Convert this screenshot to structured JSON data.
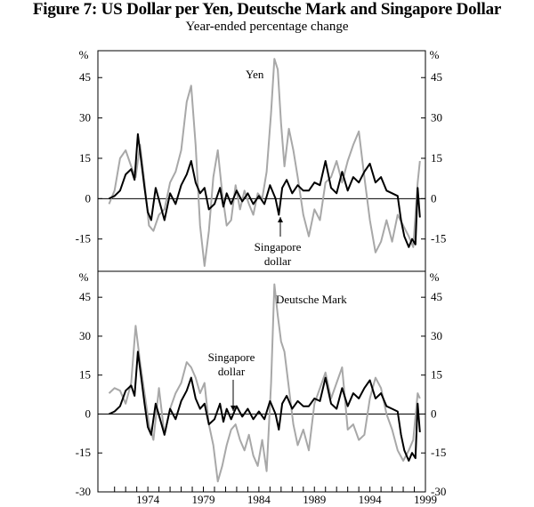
{
  "title": "Figure 7: US Dollar per Yen, Deutsche Mark and Singapore Dollar",
  "subtitle": "Year-ended percentage change",
  "colors": {
    "singapore": "#000000",
    "comparison": "#a8a8a8"
  },
  "chart_data": [
    {
      "type": "line",
      "panel": "top",
      "ylabel": "%",
      "ylim": [
        -27,
        55
      ],
      "yticks": [
        -15,
        0,
        15,
        30,
        45
      ],
      "ytick_labels": [
        "-15",
        "0",
        "15",
        "30",
        "45"
      ],
      "xlim": [
        1970.0,
        1999.5
      ],
      "grid": false,
      "annotations": [
        {
          "text": "Yen",
          "series": "Yen"
        },
        {
          "text": "Singapore",
          "series": "Singapore dollar"
        },
        {
          "text": "dollar",
          "series": "Singapore dollar"
        }
      ],
      "series": [
        {
          "name": "Singapore dollar",
          "x": [
            1971.0,
            1971.5,
            1972.0,
            1972.5,
            1973.0,
            1973.3,
            1973.6,
            1973.9,
            1974.2,
            1974.5,
            1974.8,
            1975.2,
            1975.6,
            1976.0,
            1976.5,
            1977.0,
            1977.5,
            1978.0,
            1978.4,
            1978.8,
            1979.2,
            1979.6,
            1980.0,
            1980.5,
            1981.0,
            1981.3,
            1981.6,
            1982.0,
            1982.5,
            1983.0,
            1983.5,
            1984.0,
            1984.5,
            1985.0,
            1985.5,
            1986.0,
            1986.3,
            1986.6,
            1987.0,
            1987.5,
            1988.0,
            1988.5,
            1989.0,
            1989.5,
            1990.0,
            1990.5,
            1991.0,
            1991.5,
            1992.0,
            1992.5,
            1993.0,
            1993.5,
            1994.0,
            1994.5,
            1995.0,
            1995.5,
            1996.0,
            1996.5,
            1997.0,
            1997.3,
            1997.6,
            1998.0,
            1998.3,
            1998.6,
            1998.8,
            1999.0
          ],
          "y": [
            0,
            1,
            3,
            9,
            11,
            7,
            24,
            14,
            4,
            -5,
            -8,
            4,
            -2,
            -8,
            2,
            -2,
            5,
            9,
            14,
            6,
            2,
            4,
            -4,
            -2,
            4,
            -3,
            2,
            -2,
            3,
            -1,
            2,
            -2,
            1,
            -2,
            5,
            0,
            -6,
            4,
            7,
            2,
            5,
            3,
            3,
            6,
            5,
            14,
            4,
            2,
            10,
            3,
            8,
            6,
            10,
            13,
            6,
            8,
            3,
            2,
            1,
            -8,
            -14,
            -18,
            -15,
            -17,
            4,
            -7
          ]
        },
        {
          "name": "Yen",
          "x": [
            1971.0,
            1971.5,
            1972.0,
            1972.5,
            1973.0,
            1973.4,
            1973.8,
            1974.2,
            1974.6,
            1975.0,
            1975.5,
            1976.0,
            1976.5,
            1977.0,
            1977.5,
            1978.0,
            1978.4,
            1978.8,
            1979.2,
            1979.6,
            1980.0,
            1980.4,
            1980.8,
            1981.2,
            1981.6,
            1982.0,
            1982.4,
            1982.8,
            1983.2,
            1983.6,
            1984.0,
            1984.4,
            1984.8,
            1985.2,
            1985.6,
            1985.9,
            1986.2,
            1986.5,
            1986.8,
            1987.2,
            1987.6,
            1988.0,
            1988.5,
            1989.0,
            1989.5,
            1990.0,
            1990.5,
            1991.0,
            1991.5,
            1992.0,
            1992.5,
            1993.0,
            1993.5,
            1994.0,
            1994.5,
            1995.0,
            1995.5,
            1996.0,
            1996.5,
            1997.0,
            1997.5,
            1998.0,
            1998.4,
            1998.8,
            1999.0
          ],
          "y": [
            -2,
            3,
            15,
            18,
            12,
            8,
            20,
            6,
            -10,
            -12,
            -6,
            -4,
            6,
            10,
            18,
            36,
            42,
            20,
            -10,
            -25,
            -12,
            8,
            18,
            2,
            -10,
            -8,
            5,
            -4,
            3,
            -2,
            -6,
            2,
            0,
            10,
            32,
            52,
            48,
            28,
            12,
            26,
            18,
            8,
            -6,
            -14,
            -4,
            -8,
            6,
            8,
            14,
            6,
            14,
            20,
            25,
            8,
            -8,
            -20,
            -16,
            -8,
            -16,
            -6,
            -10,
            -14,
            -18,
            6,
            14
          ]
        }
      ]
    },
    {
      "type": "line",
      "panel": "bottom",
      "ylabel": "%",
      "ylim": [
        -30,
        55
      ],
      "yticks": [
        -30,
        -15,
        0,
        15,
        30,
        45
      ],
      "ytick_labels": [
        "-30",
        "-15",
        "0",
        "15",
        "30",
        "45"
      ],
      "xlim": [
        1970.0,
        1999.5
      ],
      "xticks": [
        1974,
        1979,
        1984,
        1989,
        1994,
        1999
      ],
      "xtick_labels": [
        "1974",
        "1979",
        "1984",
        "1989",
        "1994",
        "1999"
      ],
      "grid": false,
      "annotations": [
        {
          "text": "Deutsche Mark",
          "series": "Deutsche Mark"
        },
        {
          "text": "Singapore",
          "series": "Singapore dollar"
        },
        {
          "text": "dollar",
          "series": "Singapore dollar"
        }
      ],
      "series": [
        {
          "name": "Singapore dollar",
          "x": [
            1971.0,
            1971.5,
            1972.0,
            1972.5,
            1973.0,
            1973.3,
            1973.6,
            1973.9,
            1974.2,
            1974.5,
            1974.8,
            1975.2,
            1975.6,
            1976.0,
            1976.5,
            1977.0,
            1977.5,
            1978.0,
            1978.4,
            1978.8,
            1979.2,
            1979.6,
            1980.0,
            1980.5,
            1981.0,
            1981.3,
            1981.6,
            1982.0,
            1982.5,
            1983.0,
            1983.5,
            1984.0,
            1984.5,
            1985.0,
            1985.5,
            1986.0,
            1986.3,
            1986.6,
            1987.0,
            1987.5,
            1988.0,
            1988.5,
            1989.0,
            1989.5,
            1990.0,
            1990.5,
            1991.0,
            1991.5,
            1992.0,
            1992.5,
            1993.0,
            1993.5,
            1994.0,
            1994.5,
            1995.0,
            1995.5,
            1996.0,
            1996.5,
            1997.0,
            1997.3,
            1997.6,
            1998.0,
            1998.3,
            1998.6,
            1998.8,
            1999.0
          ],
          "y": [
            0,
            1,
            3,
            9,
            11,
            7,
            24,
            14,
            4,
            -5,
            -8,
            4,
            -2,
            -8,
            2,
            -2,
            5,
            9,
            14,
            6,
            2,
            4,
            -4,
            -2,
            4,
            -3,
            2,
            -2,
            3,
            -1,
            2,
            -2,
            1,
            -2,
            5,
            0,
            -6,
            4,
            7,
            2,
            5,
            3,
            3,
            6,
            5,
            14,
            4,
            2,
            10,
            3,
            8,
            6,
            10,
            13,
            6,
            8,
            3,
            2,
            1,
            -8,
            -14,
            -18,
            -15,
            -17,
            4,
            -7
          ]
        },
        {
          "name": "Deutsche Mark",
          "x": [
            1971.0,
            1971.5,
            1972.0,
            1972.5,
            1973.0,
            1973.4,
            1973.8,
            1974.2,
            1974.6,
            1975.0,
            1975.5,
            1976.0,
            1976.5,
            1977.0,
            1977.5,
            1978.0,
            1978.4,
            1978.8,
            1979.2,
            1979.6,
            1980.0,
            1980.4,
            1980.8,
            1981.2,
            1981.6,
            1982.0,
            1982.4,
            1982.8,
            1983.2,
            1983.6,
            1984.0,
            1984.4,
            1984.8,
            1985.2,
            1985.6,
            1985.9,
            1986.2,
            1986.5,
            1986.8,
            1987.2,
            1987.6,
            1988.0,
            1988.5,
            1989.0,
            1989.5,
            1990.0,
            1990.5,
            1991.0,
            1991.5,
            1992.0,
            1992.5,
            1993.0,
            1993.5,
            1994.0,
            1994.5,
            1995.0,
            1995.5,
            1996.0,
            1996.5,
            1997.0,
            1997.5,
            1998.0,
            1998.4,
            1998.8,
            1999.0
          ],
          "y": [
            8,
            10,
            9,
            4,
            12,
            34,
            20,
            8,
            -4,
            -10,
            10,
            -8,
            2,
            8,
            12,
            20,
            18,
            14,
            8,
            12,
            -4,
            -12,
            -26,
            -20,
            -12,
            -6,
            -4,
            -10,
            -14,
            -8,
            -16,
            -20,
            -10,
            -22,
            12,
            50,
            38,
            28,
            24,
            10,
            -4,
            -12,
            -6,
            -14,
            4,
            10,
            16,
            6,
            12,
            18,
            -6,
            -4,
            -10,
            -8,
            6,
            14,
            10,
            0,
            -6,
            -14,
            -18,
            -14,
            -10,
            8,
            6
          ]
        }
      ]
    }
  ]
}
